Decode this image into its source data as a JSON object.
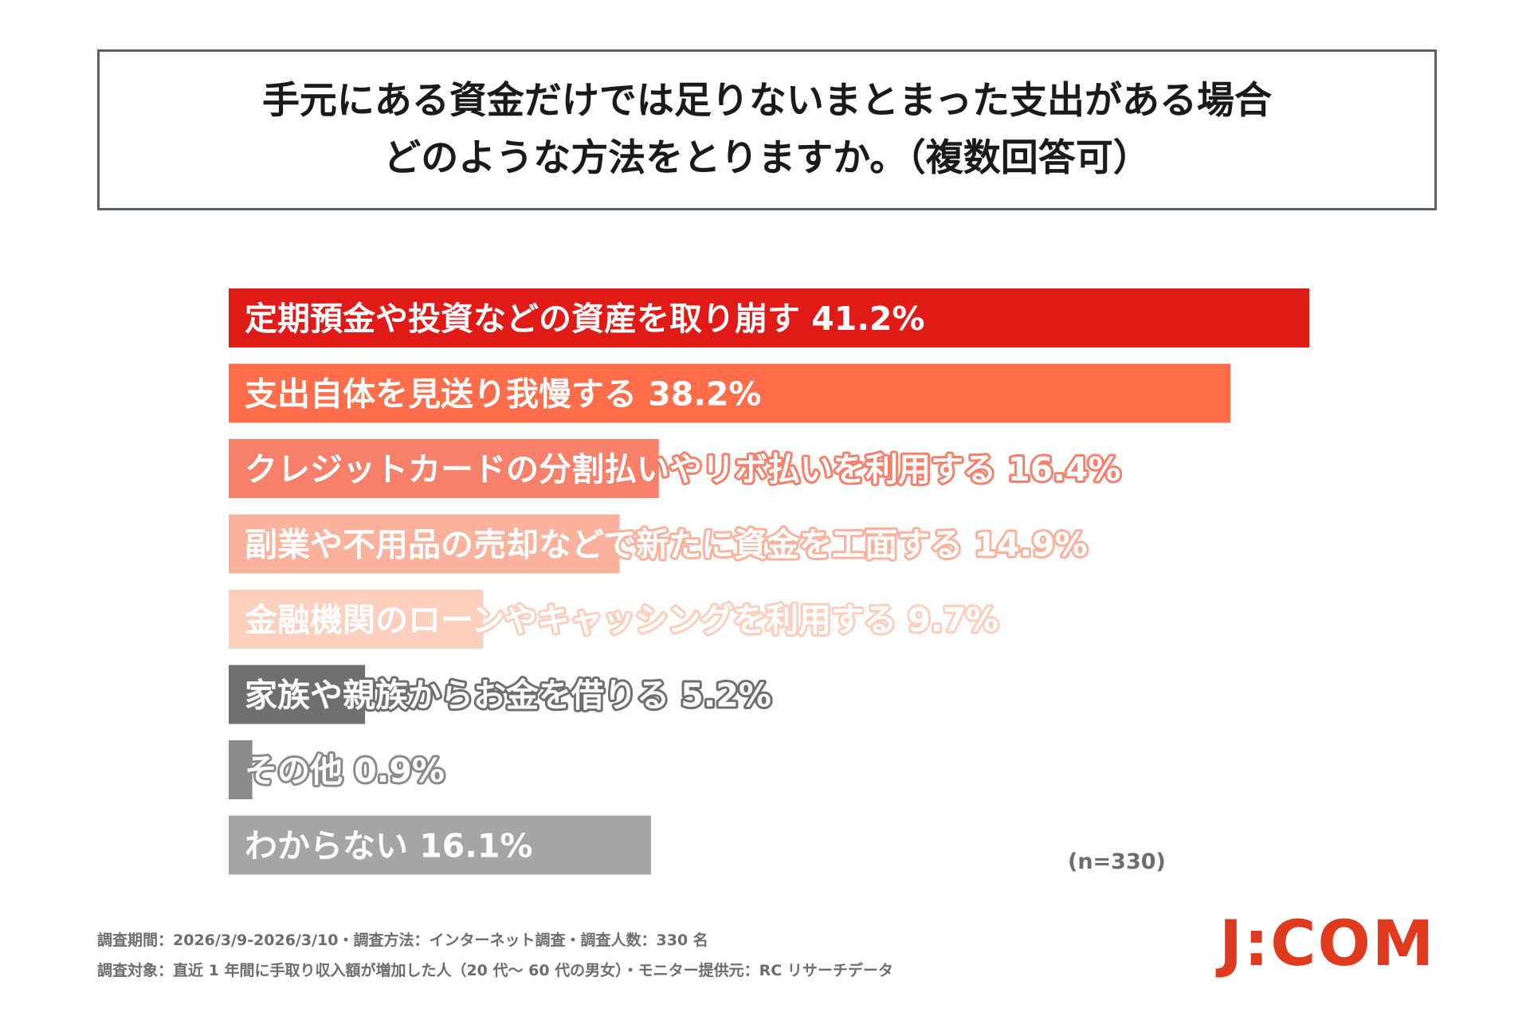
{
  "title": {
    "line1": "手元にある資金だけでは足りないまとまった支出がある場合",
    "line2": "どのような方法をとりますか。（複数回答可）"
  },
  "chart_data": {
    "type": "bar",
    "orientation": "horizontal",
    "unit": "%",
    "categories": [
      "定期預金や投資などの資産を取り崩す",
      "支出自体を見送り我慢する",
      "クレジットカードの分割払いやリボ払いを利用する",
      "副業や不用品の売却などで新たに資金を工面する",
      "金融機関のローンやキャッシングを利用する",
      "家族や親族からお金を借りる",
      "その他",
      "わからない"
    ],
    "values": [
      41.2,
      38.2,
      16.4,
      14.9,
      9.7,
      5.2,
      0.9,
      16.1
    ],
    "value_labels": [
      "41.2%",
      "38.2%",
      "16.4%",
      "14.9%",
      "9.7%",
      "5.2%",
      "0.9%",
      "16.1%"
    ],
    "colors": [
      "#e01a17",
      "#ff6d4a",
      "#f6806a",
      "#fbb29c",
      "#fdcfbd",
      "#6f6f6f",
      "#8b8b8b",
      "#a5a5a5"
    ],
    "label_fill": [
      "#ffffff",
      "#ffffff",
      "#ffffff",
      "#ffffff",
      "#ffffff",
      "#ffffff",
      "#ffffff",
      "#ffffff"
    ],
    "label_outline": [
      "#e01a17",
      "#ff6d4a",
      "#f6806a",
      "#fbb29c",
      "#fdcfbd",
      "#6f6f6f",
      "#8b8b8b",
      "#a5a5a5"
    ],
    "xlim": [
      0,
      41.2
    ]
  },
  "sample": "(n=330)",
  "survey": {
    "line1": "調査期間：2026/3/9-2026/3/10・調査方法：インターネット調査・調査人数：330 名",
    "line2": "調査対象：直近 1 年間に手取り収入額が増加した人（20 代～ 60 代の男女）・モニター提供元：RC リサーチデータ"
  },
  "logo": "J:COM"
}
